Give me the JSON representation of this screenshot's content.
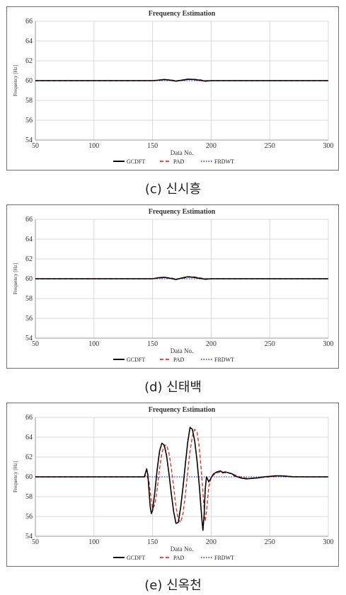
{
  "chart_data": [
    {
      "type": "line",
      "caption": "(c) 신시흥",
      "title": "Frequency Estimation",
      "xlabel": "Data No.",
      "ylabel": "Frequency [Hz]",
      "xlim": [
        50,
        300
      ],
      "ylim": [
        54,
        66
      ],
      "xticks": [
        50,
        100,
        150,
        200,
        250,
        300
      ],
      "yticks": [
        54,
        56,
        58,
        60,
        62,
        64,
        66
      ],
      "grid": true,
      "legend": "bottom-center",
      "series": [
        {
          "name": "GCDFT",
          "color": "#000000",
          "style": "solid",
          "x": [
            50,
            150,
            155,
            160,
            165,
            170,
            175,
            180,
            185,
            190,
            195,
            200,
            210,
            300
          ],
          "y": [
            60,
            60,
            60.05,
            60.12,
            60.05,
            59.95,
            60.05,
            60.15,
            60.12,
            60.05,
            59.95,
            60,
            60,
            60
          ]
        },
        {
          "name": "PAD",
          "color": "#e03030",
          "style": "dashed",
          "x": [
            50,
            150,
            155,
            160,
            165,
            170,
            175,
            180,
            185,
            190,
            195,
            200,
            210,
            300
          ],
          "y": [
            60,
            60,
            60.03,
            60.1,
            60.08,
            60.0,
            60.02,
            60.12,
            60.15,
            60.1,
            60.0,
            60,
            60,
            60
          ]
        },
        {
          "name": "FRDWT",
          "color": "#3a4fd0",
          "style": "dotted",
          "x": [
            50,
            300
          ],
          "y": [
            60,
            60
          ]
        }
      ]
    },
    {
      "type": "line",
      "caption": "(d) 신태백",
      "title": "Frequency Estimation",
      "xlabel": "Data No.",
      "ylabel": "Frequency [Hz]",
      "xlim": [
        50,
        300
      ],
      "ylim": [
        54,
        66
      ],
      "xticks": [
        50,
        100,
        150,
        200,
        250,
        300
      ],
      "yticks": [
        54,
        56,
        58,
        60,
        62,
        64,
        66
      ],
      "grid": true,
      "legend": "bottom-center",
      "series": [
        {
          "name": "GCDFT",
          "color": "#000000",
          "style": "solid",
          "x": [
            50,
            150,
            155,
            160,
            165,
            170,
            175,
            180,
            185,
            190,
            195,
            200,
            210,
            300
          ],
          "y": [
            60,
            60,
            60.1,
            60.15,
            60.05,
            59.92,
            60.08,
            60.2,
            60.15,
            60.05,
            59.95,
            60,
            60,
            60
          ]
        },
        {
          "name": "PAD",
          "color": "#e03030",
          "style": "dashed",
          "x": [
            50,
            150,
            155,
            160,
            165,
            170,
            175,
            180,
            185,
            190,
            195,
            200,
            210,
            300
          ],
          "y": [
            60,
            60,
            60.05,
            60.12,
            60.1,
            59.98,
            60.02,
            60.15,
            60.2,
            60.1,
            60.0,
            60,
            60,
            60
          ]
        },
        {
          "name": "FRDWT",
          "color": "#3a4fd0",
          "style": "dotted",
          "x": [
            50,
            300
          ],
          "y": [
            60,
            60
          ]
        }
      ]
    },
    {
      "type": "line",
      "caption": "(e) 신옥천",
      "title": "Frequency Estimation",
      "xlabel": "Data No.",
      "ylabel": "Frequency [Hz]",
      "xlim": [
        50,
        300
      ],
      "ylim": [
        54,
        66
      ],
      "xticks": [
        50,
        100,
        150,
        200,
        250,
        300
      ],
      "yticks": [
        54,
        56,
        58,
        60,
        62,
        64,
        66
      ],
      "grid": true,
      "legend": "bottom-center",
      "series": [
        {
          "name": "GCDFT",
          "color": "#000000",
          "style": "solid",
          "x": [
            50,
            143,
            145,
            146,
            147,
            148,
            149,
            150,
            152,
            154,
            156,
            158,
            160,
            162,
            164,
            166,
            168,
            170,
            172,
            174,
            176,
            178,
            180,
            182,
            184,
            186,
            188,
            190,
            192,
            193,
            194,
            195,
            196,
            198,
            200,
            202,
            205,
            208,
            210,
            212,
            215,
            218,
            220,
            225,
            230,
            235,
            240,
            245,
            250,
            255,
            260,
            265,
            270,
            280,
            300
          ],
          "y": [
            60,
            60,
            60.8,
            60.2,
            58.6,
            57,
            56.3,
            56.6,
            58.5,
            60.8,
            62.6,
            63.4,
            63.2,
            62.1,
            60.3,
            58.3,
            56.5,
            55.3,
            55.4,
            56.9,
            59.0,
            61.3,
            63.5,
            65.0,
            64.8,
            63.6,
            61.6,
            59.0,
            55.8,
            54.6,
            56.2,
            58.8,
            60.0,
            59.5,
            59.9,
            60.3,
            60.5,
            60.6,
            60.4,
            60.5,
            60.4,
            60.3,
            60.1,
            59.9,
            59.8,
            59.85,
            59.9,
            60.0,
            60.05,
            60.1,
            60.1,
            60.05,
            60.0,
            60,
            60
          ]
        },
        {
          "name": "PAD",
          "color": "#e03030",
          "style": "dashed",
          "x": [
            50,
            143,
            145,
            147,
            149,
            150,
            152,
            154,
            156,
            158,
            160,
            162,
            164,
            166,
            168,
            170,
            172,
            174,
            176,
            178,
            180,
            182,
            184,
            186,
            188,
            190,
            192,
            194,
            195,
            196,
            198,
            200,
            202,
            205,
            208,
            210,
            212,
            215,
            218,
            220,
            225,
            230,
            235,
            240,
            245,
            250,
            255,
            260,
            265,
            270,
            280,
            300
          ],
          "y": [
            60,
            60,
            60.2,
            59.5,
            57.6,
            56.8,
            57.2,
            58.8,
            60.8,
            62.4,
            63.2,
            63.2,
            62.4,
            60.9,
            59.0,
            57.0,
            55.7,
            55.4,
            56.3,
            58.2,
            60.5,
            62.6,
            64.1,
            64.8,
            64.5,
            62.9,
            60.0,
            56.8,
            55.5,
            56.5,
            59.0,
            59.9,
            60.2,
            60.4,
            60.5,
            60.5,
            60.4,
            60.4,
            60.3,
            60.2,
            60.0,
            59.85,
            59.85,
            59.9,
            59.95,
            60.0,
            60.05,
            60.1,
            60.08,
            60.03,
            60,
            60
          ]
        },
        {
          "name": "FRDWT",
          "color": "#3a4fd0",
          "style": "dotted",
          "x": [
            50,
            300
          ],
          "y": [
            60,
            60
          ]
        }
      ]
    }
  ]
}
